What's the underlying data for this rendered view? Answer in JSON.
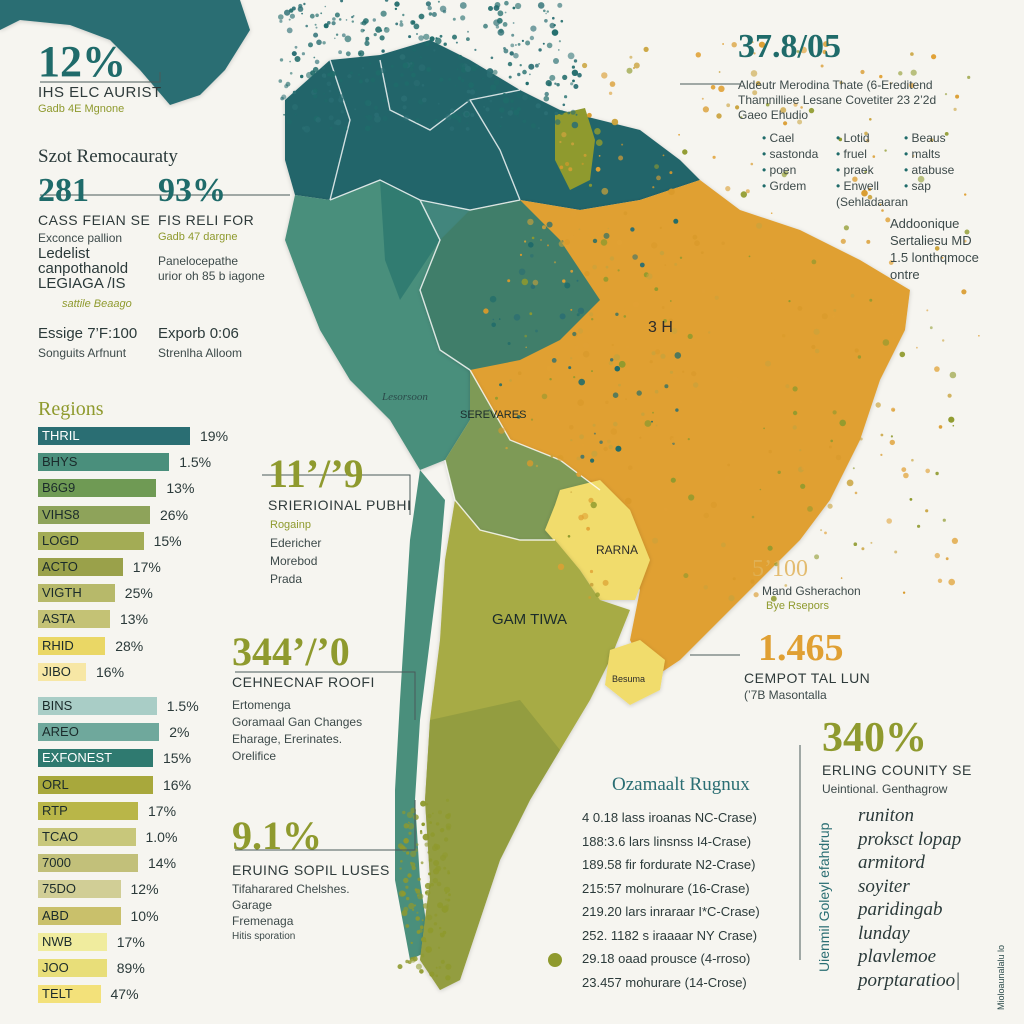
{
  "colors": {
    "teal": "#1f6b6a",
    "deep_teal": "#2a6e73",
    "sea": "#4a8f7c",
    "olive": "#8f9a2e",
    "olive_light": "#b9bb4a",
    "orange": "#e0a033",
    "yellow": "#f1dc6c",
    "bg": "#f6f5f0"
  },
  "top_left": {
    "big": "12%",
    "line1": "IHS ELC AURIST",
    "line2": "Gadb 4E Mgnone"
  },
  "block1": {
    "title": "Szot Remocauraty",
    "a_big": "281",
    "a_cap": "CASS FEIAN SE",
    "a_sub": "Exconce pallion",
    "b_big": "93%",
    "b_cap": "FIS RELI FOR",
    "b_sub": "Gadb 47 dargne",
    "c_line1": "Ledelist",
    "c_line2": "canpothanold",
    "c_line3": "LEGIAGA /IS",
    "d_line1": "Panelocepathe",
    "d_line2": "urior oh 85 b iagone",
    "squiggle": "sattile Beaago",
    "e_title": "Essige 7’F:100",
    "e_sub": "Songuits Arfnunt",
    "f_title": "Exporb 0:06",
    "f_sub": "Strenlha Alloom"
  },
  "regions_title": "Regions",
  "bars1": [
    {
      "label": "THRIL",
      "pct": "19%",
      "value": 0.95,
      "color": "#2a6e73",
      "light": true
    },
    {
      "label": "BHYS",
      "pct": "1.5%",
      "value": 0.82,
      "color": "#4a8f7c"
    },
    {
      "label": "B6G9",
      "pct": "13%",
      "value": 0.74,
      "color": "#6f9a54"
    },
    {
      "label": "VIHS8",
      "pct": "26%",
      "value": 0.7,
      "color": "#8ea35a"
    },
    {
      "label": "LOGD",
      "pct": "15%",
      "value": 0.66,
      "color": "#a3ac55"
    },
    {
      "label": "ACTO",
      "pct": "17%",
      "value": 0.53,
      "color": "#9aa14a"
    },
    {
      "label": "VIGTH",
      "pct": "25%",
      "value": 0.48,
      "color": "#b7b96a"
    },
    {
      "label": "ASTA",
      "pct": "13%",
      "value": 0.45,
      "color": "#c4c275"
    },
    {
      "label": "RHID",
      "pct": "28%",
      "value": 0.42,
      "color": "#ead765"
    },
    {
      "label": "JIBO",
      "pct": "16%",
      "value": 0.3,
      "color": "#f7e7a5"
    }
  ],
  "bars2": [
    {
      "label": "BINS",
      "pct": "1.5%",
      "value": 0.95,
      "color": "#a9cdc6"
    },
    {
      "label": "AREO",
      "pct": "2%",
      "value": 0.97,
      "color": "#6fa89c"
    },
    {
      "label": "EXFONEST",
      "pct": "15%",
      "value": 0.92,
      "color": "#2f7a70",
      "light": true
    },
    {
      "label": "ORL",
      "pct": "16%",
      "value": 0.92,
      "color": "#a8a83c"
    },
    {
      "label": "RTP",
      "pct": "17%",
      "value": 0.8,
      "color": "#b9b648"
    },
    {
      "label": "TCAO",
      "pct": "1.0%",
      "value": 0.78,
      "color": "#c8c77b"
    },
    {
      "label": "7000",
      "pct": "14%",
      "value": 0.8,
      "color": "#c2c07a"
    },
    {
      "label": "75DO",
      "pct": "12%",
      "value": 0.66,
      "color": "#d1ce96"
    },
    {
      "label": "ABD",
      "pct": "10%",
      "value": 0.66,
      "color": "#c9c06b"
    },
    {
      "label": "NWB",
      "pct": "17%",
      "value": 0.55,
      "color": "#f0ec9e"
    },
    {
      "label": "JOO",
      "pct": "89%",
      "value": 0.55,
      "color": "#e8de79"
    },
    {
      "label": "TELT",
      "pct": "47%",
      "value": 0.5,
      "color": "#f3e17a"
    }
  ],
  "mid_left": {
    "big": "11’/’9",
    "cap": "SRIERIOINAL PUBHI",
    "l1": "Rogainp",
    "l2": "Edericher",
    "l3": "Morebod",
    "l4": "Prada"
  },
  "callout_344": {
    "big": "344’/’0",
    "cap": "CEHNECNAF ROOFI",
    "l1": "Ertomenga",
    "l2": "Goramaal Gan Changes",
    "l3": "Eharage, Ererinates.",
    "l4": "Orelifice"
  },
  "callout_91": {
    "big": "9.1%",
    "cap": "ERUING SOPIL LUSES",
    "l1": "Tifaharared Chelshes.",
    "l2": "Garage",
    "l3": "Fremenaga",
    "l4": "Hitis sporation"
  },
  "top_right": {
    "big": "37.8/05",
    "l1": "Aldeutr Merodina Thate (6-Ereditend",
    "l2": "Thamnilliee Lesane Covetiter 23 2’2d",
    "l3": "Gaeo Ehudio",
    "col1": [
      "Cael",
      "sastonda",
      "poen",
      "Grdem"
    ],
    "col2": [
      "Lotid",
      "fruel",
      "praek",
      "Enwell"
    ],
    "col3": [
      "Beaus",
      "malts",
      "atabuse",
      "sap"
    ],
    "tail": "(Sehladaaran"
  },
  "right_mid": {
    "l1": "Addoonique",
    "l2": "Sertaliesu MD",
    "l3": "1.5 lonthqmoce",
    "l4": "ontre"
  },
  "stat_5100": {
    "big": "5’100",
    "l1": "Mand Gsherachon",
    "l2": "Bye Rsepors"
  },
  "stat_1465": {
    "big": "1.465",
    "cap": "CEMPOT TAL LUN",
    "sub": "(’7B Masontalla"
  },
  "stat_340": {
    "big": "340%",
    "cap": "ERLING COUNITY SE",
    "sub": "Ueintional. Genthagrow"
  },
  "bottom_list": {
    "title": "Ozamaalt Rugnux",
    "rows": [
      "4 0.18 lass iroanas NC-Crase)",
      "188:3.6 lars linsnss I4-Crase)",
      "189.58 fir fordurate N2-Crase)",
      "215:57 molnurare (16-Crase)",
      "219.20 lars inraraar I*C-Crase)",
      "252. 1182 s iraaaar NY Crase)",
      "29.18 oaad prousce (4-rroso)",
      "23.457 mohurare (14-Crose)"
    ]
  },
  "vertical_text": "Uienmil Goleyl efahdrup",
  "right_list": [
    "runiton",
    "proksct lopap",
    "armitord",
    "soyiter",
    "paridingab",
    "lunday",
    "plavlemoe",
    "porptaratioo|"
  ],
  "edge_text": "Mioloaunalalu lo",
  "map_labels": {
    "bolivia_area": "SEREVARES",
    "center": "3 H",
    "chile_coast": "Lesorsoon",
    "paraguay": "RARNA",
    "argentina": "GAM TIWA",
    "uruguay": "Besuma"
  }
}
